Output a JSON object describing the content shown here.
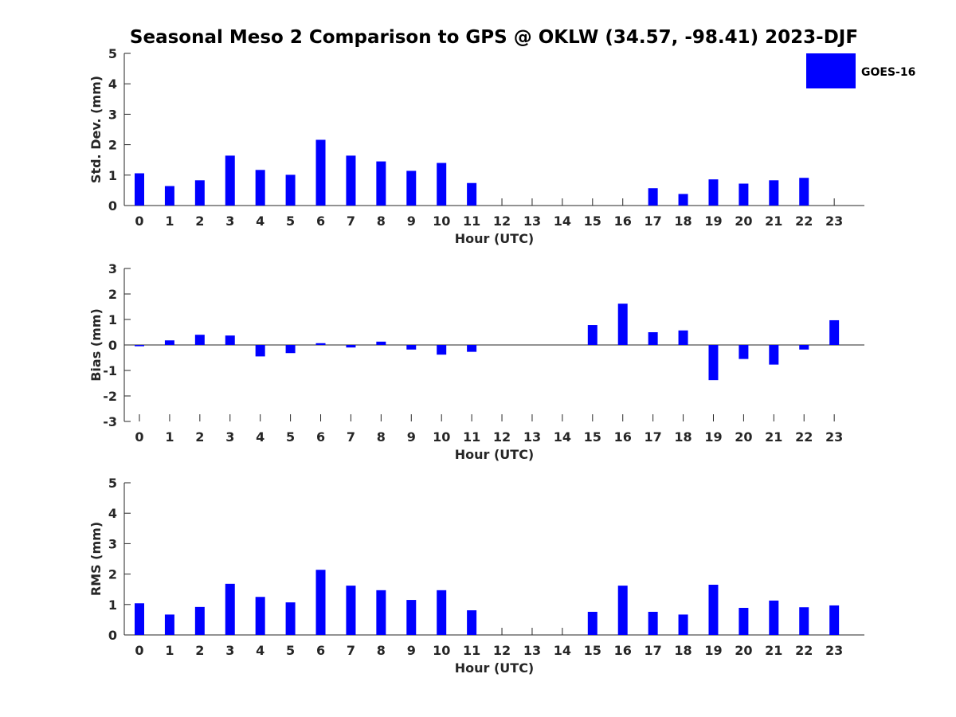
{
  "title": "Seasonal Meso 2 Comparison to GPS @ OKLW (34.57, -98.41) 2023-DJF",
  "legend": {
    "label": "GOES-16",
    "color": "#0000ff"
  },
  "chart_data": [
    {
      "type": "bar",
      "title": "Seasonal Meso 2 Comparison to GPS @ OKLW (34.57, -98.41) 2023-DJF",
      "xlabel": "Hour (UTC)",
      "ylabel": "Std. Dev. (mm)",
      "ylim": [
        0,
        5
      ],
      "yticks": [
        "0",
        "1",
        "2",
        "3",
        "4",
        "5"
      ],
      "categories": [
        "0",
        "1",
        "2",
        "3",
        "4",
        "5",
        "6",
        "7",
        "8",
        "9",
        "10",
        "11",
        "12",
        "13",
        "14",
        "15",
        "16",
        "17",
        "18",
        "19",
        "20",
        "21",
        "22",
        "23"
      ],
      "series": [
        {
          "name": "GOES-16",
          "color": "#0000ff",
          "values": [
            1.06,
            0.64,
            0.83,
            1.64,
            1.17,
            1.01,
            2.16,
            1.64,
            1.45,
            1.14,
            1.4,
            0.74,
            null,
            null,
            null,
            null,
            null,
            0.57,
            0.38,
            0.86,
            0.72,
            0.83,
            0.91,
            null
          ]
        }
      ],
      "grid": false,
      "legend_position": "top-right"
    },
    {
      "type": "bar",
      "xlabel": "Hour (UTC)",
      "ylabel": "Bias (mm)",
      "ylim": [
        -3,
        3
      ],
      "yticks": [
        "-3",
        "-2",
        "-1",
        "0",
        "1",
        "2",
        "3"
      ],
      "categories": [
        "0",
        "1",
        "2",
        "3",
        "4",
        "5",
        "6",
        "7",
        "8",
        "9",
        "10",
        "11",
        "12",
        "13",
        "14",
        "15",
        "16",
        "17",
        "18",
        "19",
        "20",
        "21",
        "22",
        "23"
      ],
      "series": [
        {
          "name": "GOES-16",
          "color": "#0000ff",
          "values": [
            -0.05,
            0.18,
            0.4,
            0.37,
            -0.45,
            -0.32,
            0.07,
            -0.1,
            0.13,
            -0.18,
            -0.38,
            -0.27,
            null,
            null,
            null,
            0.78,
            1.62,
            0.5,
            0.57,
            -1.38,
            -0.55,
            -0.77,
            -0.18,
            0.97
          ]
        }
      ],
      "grid": false
    },
    {
      "type": "bar",
      "xlabel": "Hour (UTC)",
      "ylabel": "RMS (mm)",
      "ylim": [
        0,
        5
      ],
      "yticks": [
        "0",
        "1",
        "2",
        "3",
        "4",
        "5"
      ],
      "categories": [
        "0",
        "1",
        "2",
        "3",
        "4",
        "5",
        "6",
        "7",
        "8",
        "9",
        "10",
        "11",
        "12",
        "13",
        "14",
        "15",
        "16",
        "17",
        "18",
        "19",
        "20",
        "21",
        "22",
        "23"
      ],
      "series": [
        {
          "name": "GOES-16",
          "color": "#0000ff",
          "values": [
            1.04,
            0.67,
            0.92,
            1.68,
            1.25,
            1.07,
            2.14,
            1.62,
            1.47,
            1.15,
            1.47,
            0.81,
            null,
            null,
            null,
            0.76,
            1.62,
            0.76,
            0.67,
            1.65,
            0.89,
            1.13,
            0.91,
            0.97
          ]
        }
      ],
      "grid": false
    }
  ]
}
